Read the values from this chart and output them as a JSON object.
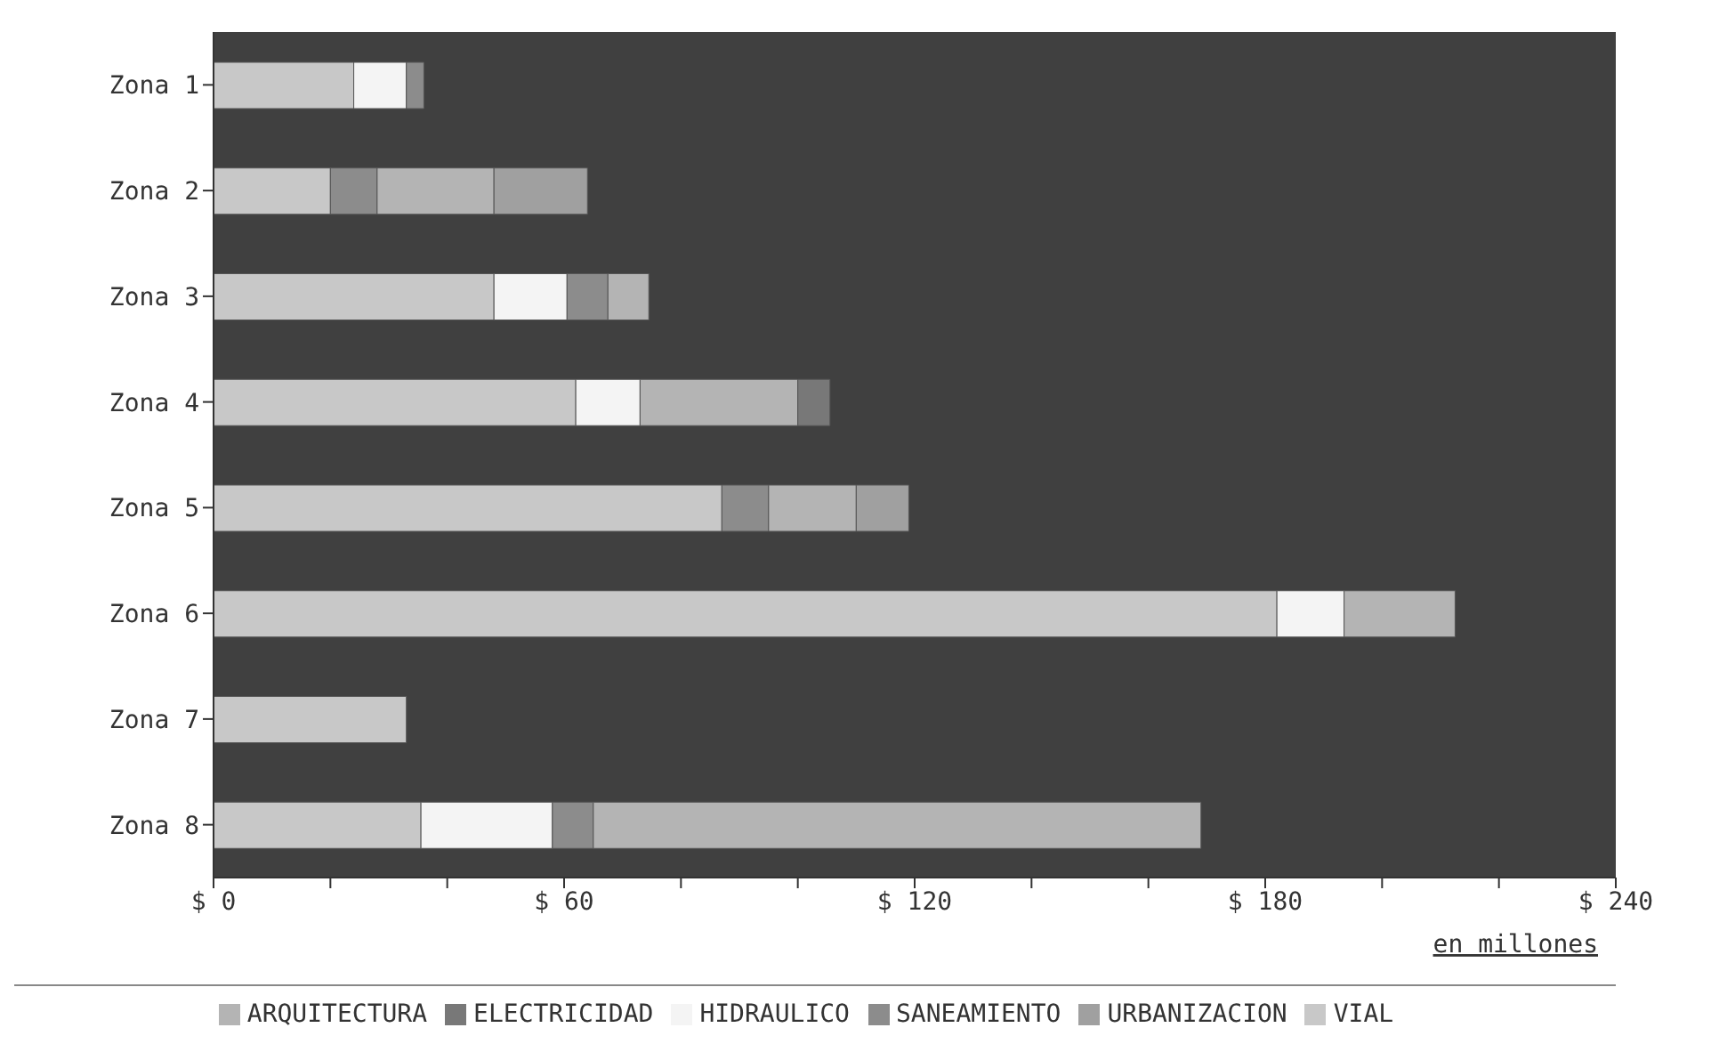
{
  "chart_data": {
    "type": "bar",
    "orientation": "horizontal",
    "stacked": true,
    "xlabel": "en millones",
    "categories": [
      "Zona 1",
      "Zona 2",
      "Zona 3",
      "Zona 4",
      "Zona 5",
      "Zona 6",
      "Zona 7",
      "Zona 8"
    ],
    "series": [
      {
        "name": "VIAL",
        "color": "#c8c8c8",
        "values": [
          24,
          20,
          48,
          62,
          87,
          182,
          33,
          35.5
        ]
      },
      {
        "name": "HIDRAULICO",
        "color": "#f4f4f4",
        "values": [
          9,
          null,
          12.5,
          11,
          null,
          11.5,
          null,
          22.5
        ]
      },
      {
        "name": "SANEAMIENTO",
        "color": "#8c8c8c",
        "values": [
          3,
          8,
          7,
          null,
          8,
          null,
          null,
          7
        ]
      },
      {
        "name": "ARQUITECTURA",
        "color": "#b4b4b4",
        "values": [
          null,
          20,
          7,
          27,
          15,
          19,
          null,
          104
        ]
      },
      {
        "name": "ELECTRICIDAD",
        "color": "#787878",
        "values": [
          null,
          null,
          null,
          5.5,
          null,
          null,
          null,
          null
        ]
      },
      {
        "name": "URBANIZACION",
        "color": "#a0a0a0",
        "values": [
          null,
          16,
          null,
          null,
          9,
          null,
          null,
          null
        ]
      }
    ],
    "xlim": [
      0,
      240
    ],
    "xticks": [
      {
        "value": 0,
        "label": "$ 0"
      },
      {
        "value": 20,
        "label": null
      },
      {
        "value": 40,
        "label": null
      },
      {
        "value": 60,
        "label": "$ 60"
      },
      {
        "value": 80,
        "label": null
      },
      {
        "value": 100,
        "label": null
      },
      {
        "value": 120,
        "label": "$ 120"
      },
      {
        "value": 140,
        "label": null
      },
      {
        "value": 160,
        "label": null
      },
      {
        "value": 180,
        "label": "$ 180"
      },
      {
        "value": 200,
        "label": null
      },
      {
        "value": 220,
        "label": null
      },
      {
        "value": 240,
        "label": "$ 240"
      }
    ],
    "legend": "bottom"
  }
}
